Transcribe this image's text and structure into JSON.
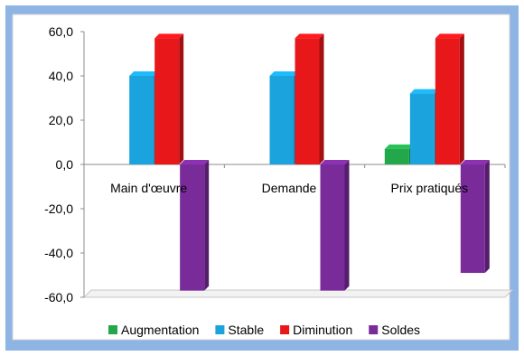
{
  "chart_data": {
    "type": "bar",
    "categories": [
      "Main d'œuvre",
      "Demande",
      "Prix pratiqués"
    ],
    "series": [
      {
        "name": "Augmentation",
        "values": [
          0,
          0,
          7
        ],
        "color": "#22a84a"
      },
      {
        "name": "Stable",
        "values": [
          40,
          40,
          32
        ],
        "color": "#1aa3dc"
      },
      {
        "name": "Diminution",
        "values": [
          57,
          57,
          57
        ],
        "color": "#e8171a"
      },
      {
        "name": "Soldes",
        "values": [
          -57,
          -57,
          -49
        ],
        "color": "#7a2b9a"
      }
    ],
    "ylim": [
      -60,
      60
    ],
    "yticks": [
      "60,0",
      "40,0",
      "20,0",
      "0,0",
      "-20,0",
      "-40,0",
      "-60,0"
    ],
    "ytick_values": [
      60,
      40,
      20,
      0,
      -20,
      -40,
      -60
    ],
    "grid": false,
    "legend_position": "bottom",
    "title": "",
    "xlabel": "",
    "ylabel": ""
  }
}
